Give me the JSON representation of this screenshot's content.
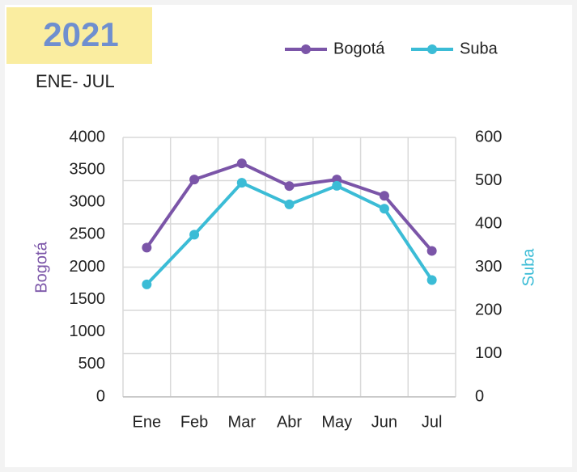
{
  "chart_data": {
    "type": "line",
    "title": "2021",
    "subtitle": "ENE- JUL",
    "categories": [
      "Ene",
      "Feb",
      "Mar",
      "Abr",
      "May",
      "Jun",
      "Jul"
    ],
    "series": [
      {
        "name": "Bogotá",
        "color": "#7b55a8",
        "values": [
          2300,
          3350,
          3600,
          3250,
          3350,
          3100,
          2250
        ]
      },
      {
        "name": "Suba",
        "color": "#3bbcd6",
        "axis": "y2",
        "values": [
          260,
          375,
          495,
          445,
          488,
          435,
          270
        ]
      }
    ],
    "ylabel": "Bogotá",
    "y2label": "Suba",
    "ylim": [
      0,
      4000
    ],
    "yticks": [
      0,
      500,
      1000,
      1500,
      2000,
      2500,
      3000,
      3500,
      4000
    ],
    "y2lim": [
      0,
      600
    ],
    "y2ticks": [
      0,
      100,
      200,
      300,
      400,
      500,
      600
    ],
    "grid": true,
    "legend": "top-right"
  }
}
